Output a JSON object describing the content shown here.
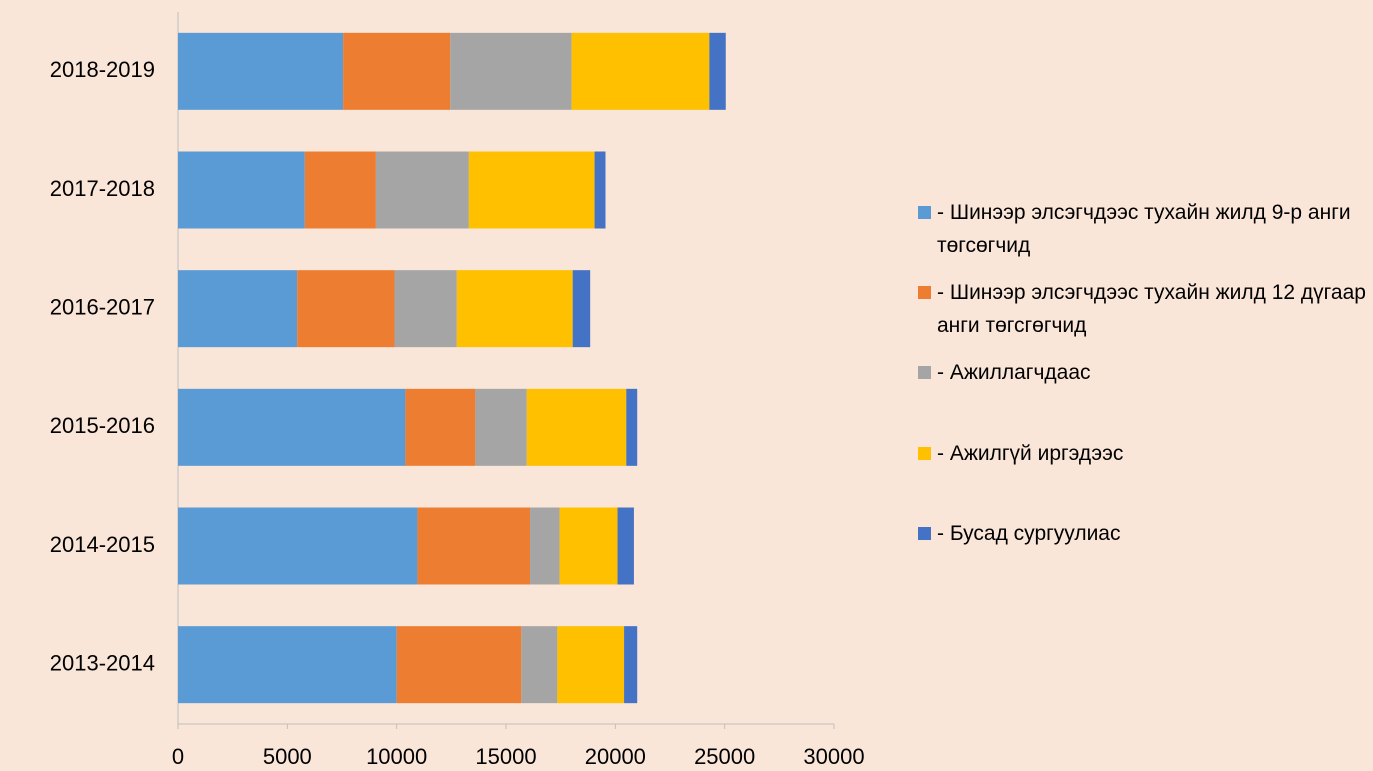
{
  "chart_data": {
    "type": "stacked_hbar",
    "categories": [
      "2018-2019",
      "2017-2018",
      "2016-2017",
      "2015-2016",
      "2014-2015",
      "2013-2014"
    ],
    "series": [
      {
        "name": "- Шинээр элсэгчдээс тухайн жилд 9-р анги төгсөгчид",
        "color": "#5b9bd5",
        "values": [
          7550,
          5800,
          5450,
          10400,
          10950,
          10000
        ]
      },
      {
        "name": "- Шинээр элсэгчдээс тухайн жилд 12 дүгаар анги төгсгөгчид",
        "color": "#ed7d31",
        "values": [
          4900,
          3250,
          4450,
          3200,
          5150,
          5700
        ]
      },
      {
        "name": "- Ажиллагчдаас",
        "color": "#a5a5a5",
        "values": [
          5550,
          4250,
          2850,
          2350,
          1350,
          1650
        ]
      },
      {
        "name": "- Ажилгүй иргэдээс",
        "color": "#ffc000",
        "values": [
          6300,
          5750,
          5300,
          4550,
          2650,
          3050
        ]
      },
      {
        "name": "- Бусад сургуулиас",
        "color": "#4472c4",
        "values": [
          750,
          500,
          800,
          500,
          750,
          600
        ]
      }
    ],
    "xlim": [
      0,
      30000
    ],
    "xticks": [
      0,
      5000,
      10000,
      15000,
      20000,
      25000,
      30000
    ]
  }
}
